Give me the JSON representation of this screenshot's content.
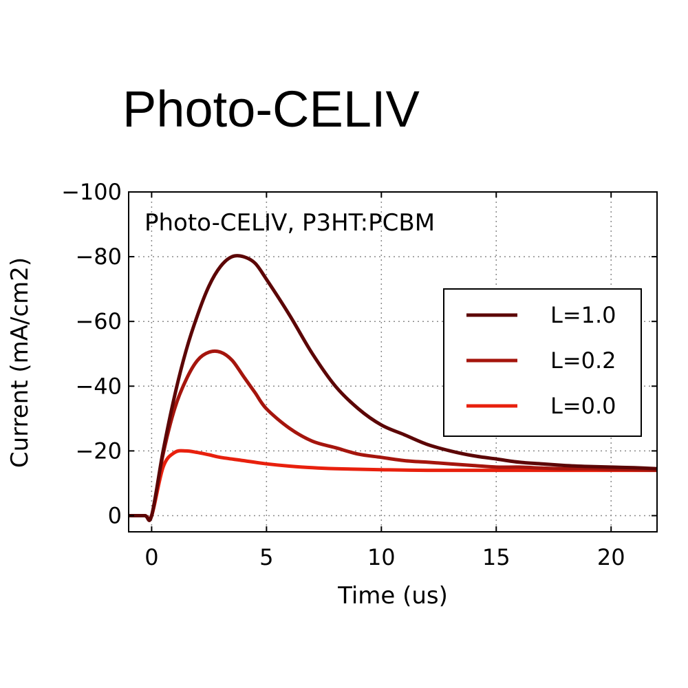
{
  "header": {
    "title": "Photo-CELIV"
  },
  "chart_data": {
    "type": "line",
    "title": "Photo-CELIV, P3HT:PCBM",
    "xlabel": "Time (us)",
    "ylabel": "Current (mA/cm2)",
    "xlim": [
      -1,
      22
    ],
    "ylim": [
      5,
      -100
    ],
    "y_inverted": true,
    "grid": true,
    "legend_position": "right",
    "xticks": [
      0,
      5,
      10,
      15,
      20
    ],
    "yticks": [
      0,
      -20,
      -40,
      -60,
      -80,
      -100
    ],
    "ytick_labels": [
      "0",
      "−20",
      "−40",
      "−60",
      "−80",
      "−100"
    ],
    "series": [
      {
        "name": "L=1.0",
        "color": "#5c0606",
        "x": [
          -1,
          -0.3,
          0,
          0.5,
          1,
          1.5,
          2,
          2.5,
          3,
          3.5,
          4,
          4.5,
          5,
          6,
          7,
          8,
          9,
          10,
          11,
          12,
          13,
          14,
          15,
          16,
          17,
          18,
          19,
          20,
          21,
          22
        ],
        "y": [
          0,
          0,
          0,
          -20,
          -37,
          -51,
          -62,
          -71,
          -77,
          -80,
          -80,
          -78,
          -73,
          -62,
          -50,
          -40,
          -33,
          -28,
          -25,
          -22,
          -20,
          -18.5,
          -17.5,
          -16.5,
          -16,
          -15.5,
          -15.2,
          -15,
          -14.8,
          -14.5
        ]
      },
      {
        "name": "L=0.2",
        "color": "#a5150d",
        "x": [
          -1,
          -0.3,
          0,
          0.5,
          1,
          1.5,
          2,
          2.5,
          3,
          3.5,
          4,
          4.5,
          5,
          6,
          7,
          8,
          9,
          10,
          11,
          12,
          13,
          14,
          15,
          16,
          17,
          18,
          19,
          20,
          21,
          22
        ],
        "y": [
          0,
          0,
          0,
          -19,
          -33,
          -42,
          -48,
          -50.5,
          -50.5,
          -48,
          -43,
          -38,
          -33,
          -27,
          -23,
          -21,
          -19,
          -18,
          -17,
          -16.5,
          -16,
          -15.5,
          -15,
          -15,
          -14.7,
          -14.5,
          -14.5,
          -14.3,
          -14.2,
          -14
        ]
      },
      {
        "name": "L=0.0",
        "color": "#e8200d",
        "x": [
          -1,
          -0.3,
          0,
          0.5,
          1,
          1.5,
          2,
          2.5,
          3,
          4,
          5,
          6,
          7,
          8,
          10,
          12,
          15,
          18,
          20,
          22
        ],
        "y": [
          0,
          0,
          0,
          -15,
          -19.5,
          -20,
          -19.5,
          -18.8,
          -18,
          -17,
          -16,
          -15.3,
          -14.8,
          -14.5,
          -14.2,
          -14,
          -14,
          -14,
          -14,
          -14
        ]
      }
    ]
  }
}
